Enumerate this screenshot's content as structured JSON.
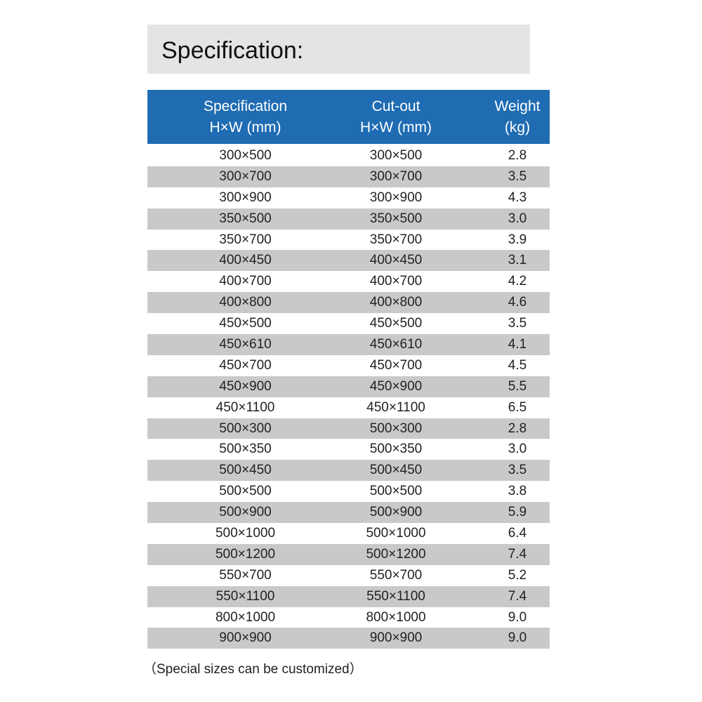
{
  "header": {
    "title": "Specification:"
  },
  "table": {
    "columns": [
      [
        "Specification",
        "H×W  (mm)"
      ],
      [
        "Cut-out",
        "H×W  (mm)"
      ],
      [
        "Weight",
        "(kg)"
      ]
    ],
    "rows": [
      [
        "300×500",
        "300×500",
        "2.8"
      ],
      [
        "300×700",
        "300×700",
        "3.5"
      ],
      [
        "300×900",
        "300×900",
        "4.3"
      ],
      [
        "350×500",
        "350×500",
        "3.0"
      ],
      [
        "350×700",
        "350×700",
        "3.9"
      ],
      [
        "400×450",
        "400×450",
        "3.1"
      ],
      [
        "400×700",
        "400×700",
        "4.2"
      ],
      [
        "400×800",
        "400×800",
        "4.6"
      ],
      [
        "450×500",
        "450×500",
        "3.5"
      ],
      [
        "450×610",
        "450×610",
        "4.1"
      ],
      [
        "450×700",
        "450×700",
        "4.5"
      ],
      [
        "450×900",
        "450×900",
        "5.5"
      ],
      [
        "450×1100",
        "450×1100",
        "6.5"
      ],
      [
        "500×300",
        "500×300",
        "2.8"
      ],
      [
        "500×350",
        "500×350",
        "3.0"
      ],
      [
        "500×450",
        "500×450",
        "3.5"
      ],
      [
        "500×500",
        "500×500",
        "3.8"
      ],
      [
        "500×900",
        "500×900",
        "5.9"
      ],
      [
        "500×1000",
        "500×1000",
        "6.4"
      ],
      [
        "500×1200",
        "500×1200",
        "7.4"
      ],
      [
        "550×700",
        "550×700",
        "5.2"
      ],
      [
        "550×1100",
        "550×1100",
        "7.4"
      ],
      [
        "800×1000",
        "800×1000",
        "9.0"
      ],
      [
        "900×900",
        "900×900",
        "9.0"
      ]
    ]
  },
  "footnote": "（Special sizes can be customized）"
}
